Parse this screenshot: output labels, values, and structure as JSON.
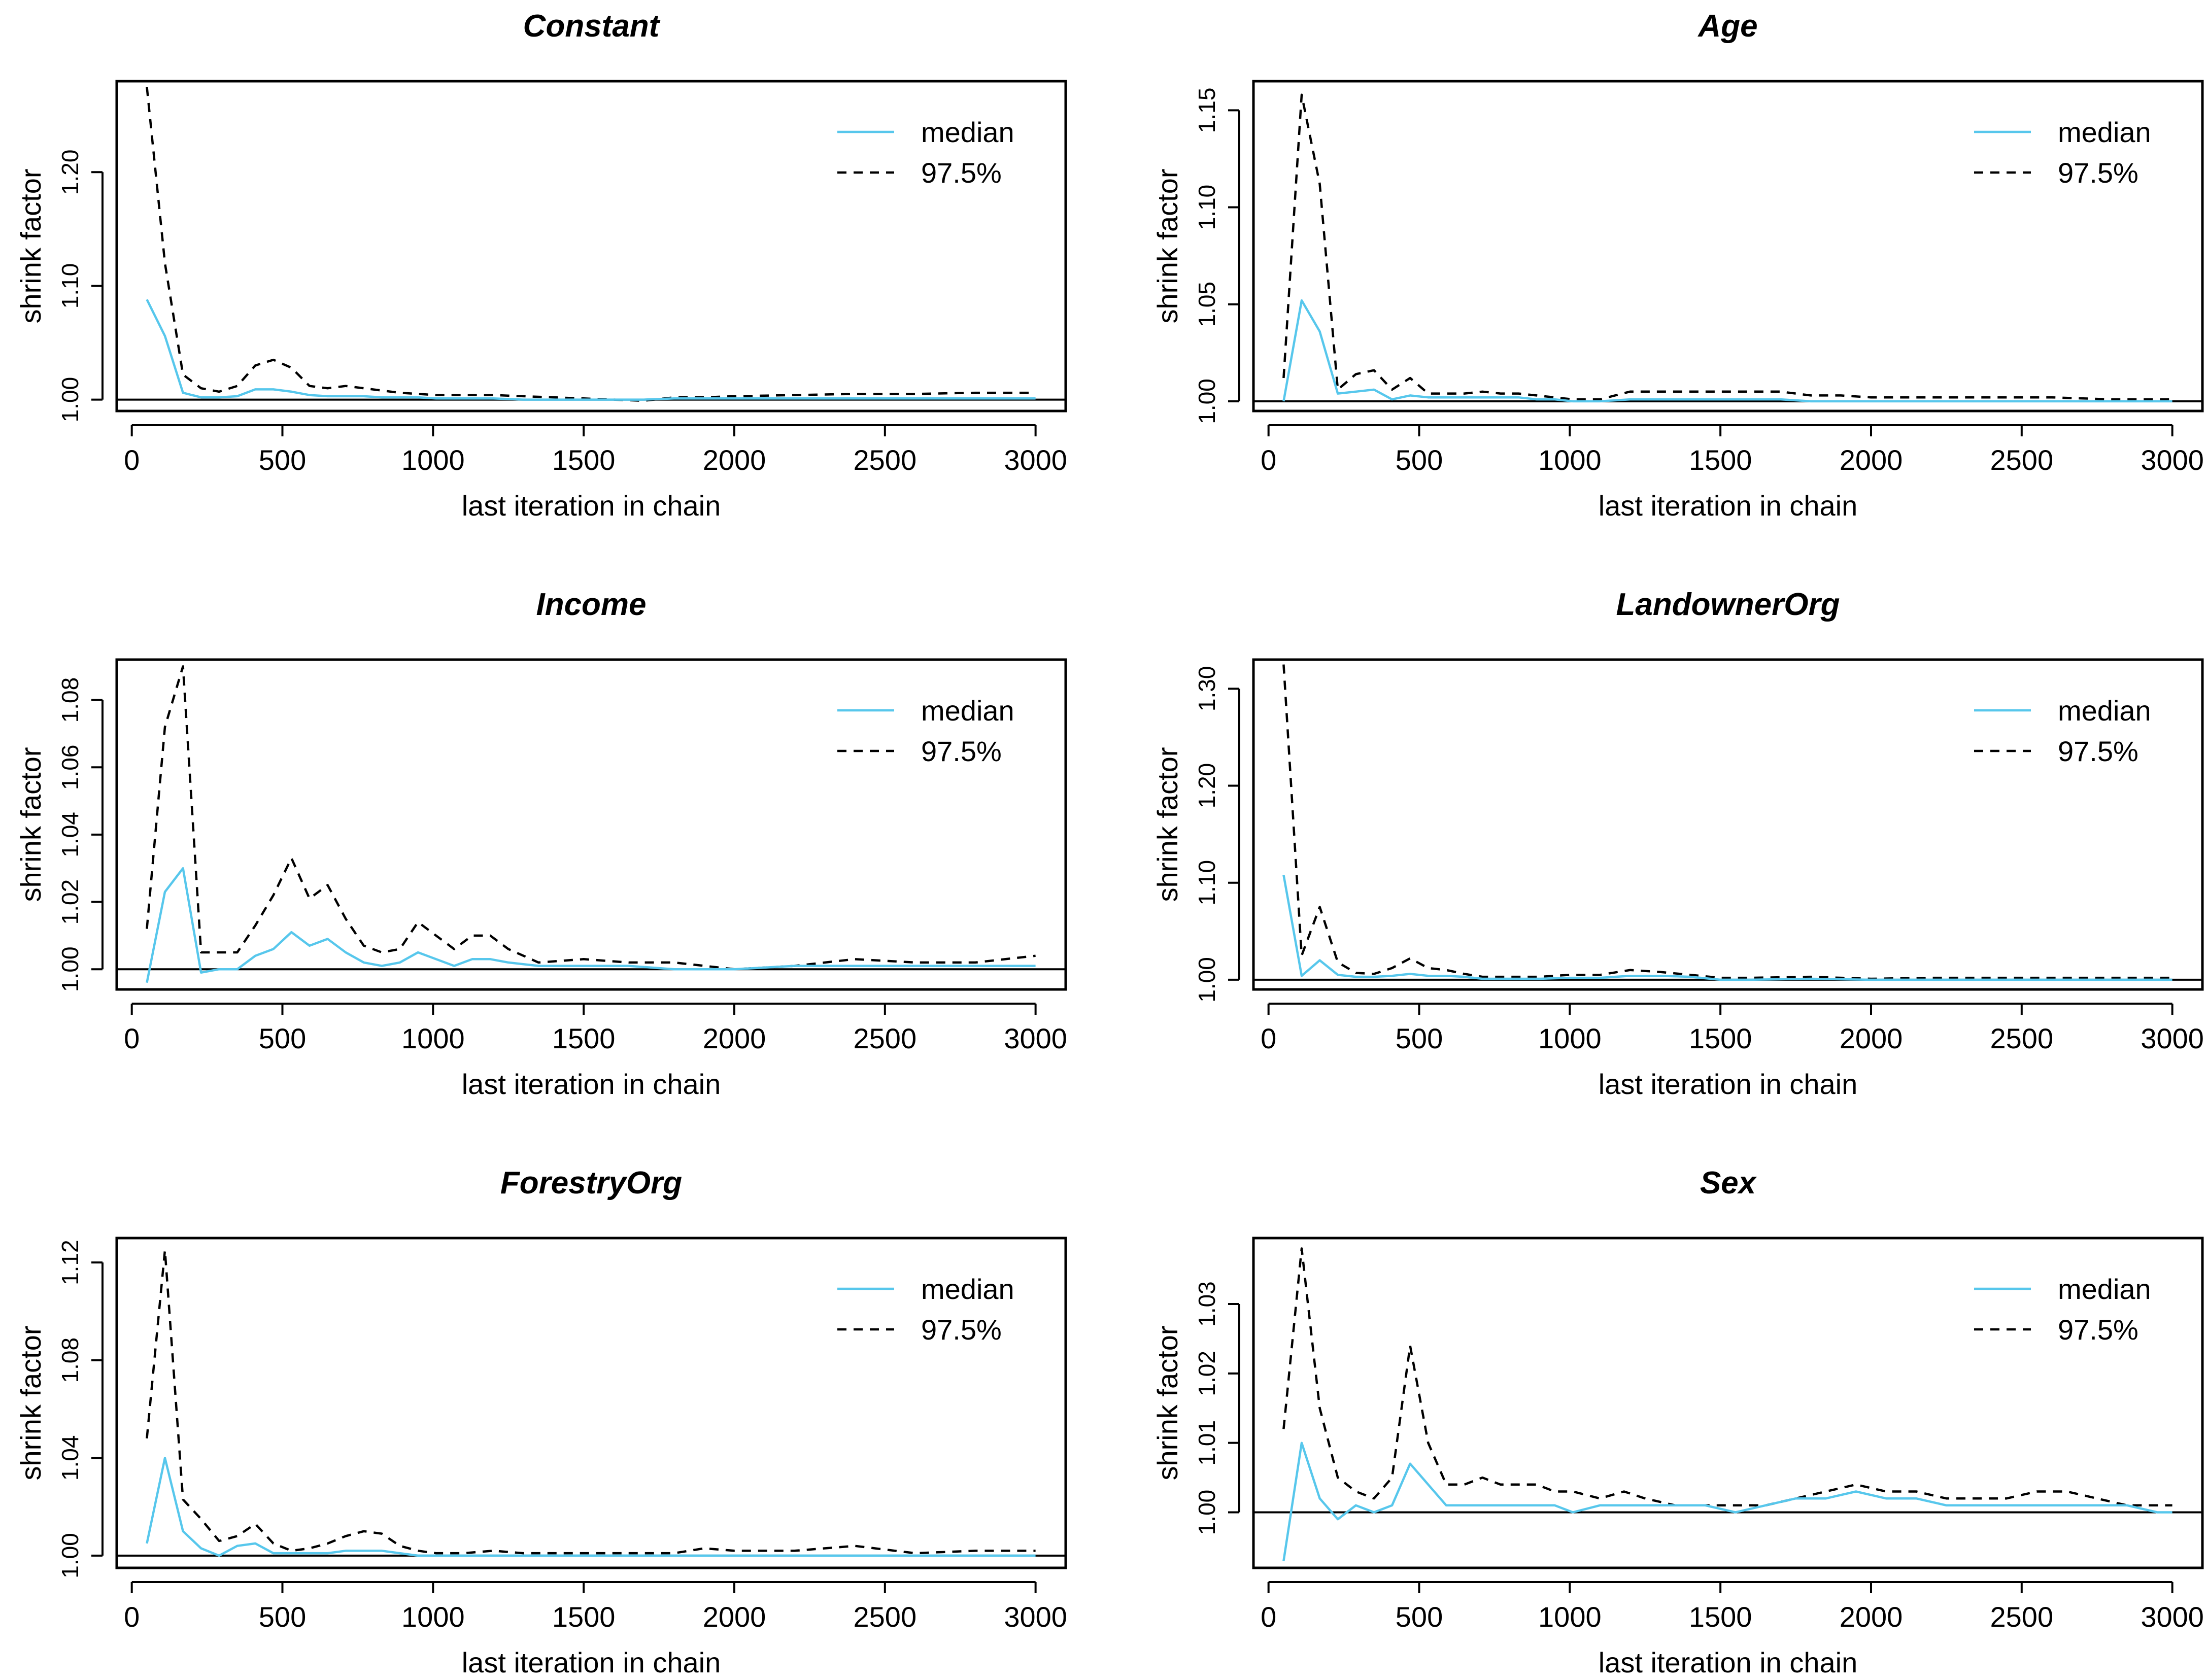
{
  "figure": {
    "median_color": "#57c7ec",
    "q975_color": "#000000",
    "refline_color": "#000000"
  },
  "chart_data": [
    {
      "type": "line",
      "title": "Constant",
      "xlabel": "last iteration in chain",
      "ylabel": "shrink factor",
      "xlim": [
        -50,
        3100
      ],
      "ylim": [
        0.99,
        1.28
      ],
      "xticks": [
        0,
        500,
        1000,
        1500,
        2000,
        2500,
        3000
      ],
      "yticks": [
        1.0,
        1.1,
        1.2
      ],
      "ytick_labels": [
        "1.00",
        "1.10",
        "1.20"
      ],
      "legend": {
        "position": "top-right",
        "entries": [
          "median",
          "97.5%"
        ]
      },
      "series": [
        {
          "name": "median",
          "x": [
            50,
            110,
            170,
            230,
            290,
            350,
            410,
            470,
            530,
            590,
            650,
            710,
            770,
            830,
            890,
            950,
            1010,
            1100,
            1200,
            1300,
            1400,
            1500,
            1600,
            1700,
            1800,
            1900,
            2000,
            2200,
            2400,
            2600,
            2800,
            3000
          ],
          "values": [
            1.088,
            1.056,
            1.006,
            1.002,
            1.002,
            1.003,
            1.009,
            1.009,
            1.007,
            1.004,
            1.003,
            1.003,
            1.003,
            1.002,
            1.002,
            1.002,
            1.001,
            1.001,
            1.001,
            1.0,
            1.0,
            1.0,
            1.0,
            1.0,
            1.001,
            1.001,
            1.001,
            1.001,
            1.001,
            1.001,
            1.001,
            1.001
          ]
        },
        {
          "name": "97.5%",
          "x": [
            50,
            110,
            170,
            230,
            290,
            350,
            410,
            470,
            530,
            590,
            650,
            710,
            770,
            830,
            890,
            950,
            1010,
            1100,
            1200,
            1300,
            1400,
            1500,
            1600,
            1700,
            1800,
            1900,
            2000,
            2200,
            2400,
            2600,
            2800,
            3000
          ],
          "values": [
            1.275,
            1.12,
            1.022,
            1.01,
            1.007,
            1.012,
            1.03,
            1.035,
            1.028,
            1.012,
            1.01,
            1.012,
            1.01,
            1.008,
            1.006,
            1.005,
            1.004,
            1.004,
            1.004,
            1.003,
            1.002,
            1.001,
            1.0,
            0.999,
            1.002,
            1.002,
            1.003,
            1.004,
            1.005,
            1.005,
            1.006,
            1.006
          ]
        }
      ]
    },
    {
      "type": "line",
      "title": "Age",
      "xlabel": "last iteration in chain",
      "ylabel": "shrink factor",
      "xlim": [
        -50,
        3100
      ],
      "ylim": [
        0.995,
        1.165
      ],
      "xticks": [
        0,
        500,
        1000,
        1500,
        2000,
        2500,
        3000
      ],
      "yticks": [
        1.0,
        1.05,
        1.1,
        1.15
      ],
      "ytick_labels": [
        "1.00",
        "1.05",
        "1.10",
        "1.15"
      ],
      "legend": {
        "position": "top-right",
        "entries": [
          "median",
          "97.5%"
        ]
      },
      "series": [
        {
          "name": "median",
          "x": [
            50,
            110,
            170,
            230,
            290,
            350,
            410,
            470,
            530,
            590,
            650,
            710,
            770,
            830,
            890,
            950,
            1010,
            1100,
            1200,
            1300,
            1400,
            1500,
            1600,
            1700,
            1800,
            1900,
            2000,
            2200,
            2400,
            2600,
            2800,
            3000
          ],
          "values": [
            1.0,
            1.052,
            1.036,
            1.004,
            1.005,
            1.006,
            1.001,
            1.003,
            1.002,
            1.002,
            1.002,
            1.002,
            1.002,
            1.002,
            1.001,
            1.001,
            1.0,
            1.0,
            1.001,
            1.001,
            1.001,
            1.001,
            1.001,
            1.001,
            1.0,
            1.0,
            1.0,
            1.0,
            1.0,
            1.0,
            1.0,
            1.0
          ]
        },
        {
          "name": "97.5%",
          "x": [
            50,
            110,
            170,
            230,
            290,
            350,
            410,
            470,
            530,
            590,
            650,
            710,
            770,
            830,
            890,
            950,
            1010,
            1100,
            1200,
            1300,
            1400,
            1500,
            1600,
            1700,
            1800,
            1900,
            2000,
            2200,
            2400,
            2600,
            2800,
            3000
          ],
          "values": [
            1.012,
            1.158,
            1.112,
            1.006,
            1.014,
            1.016,
            1.006,
            1.012,
            1.004,
            1.004,
            1.004,
            1.005,
            1.004,
            1.004,
            1.003,
            1.002,
            1.001,
            1.001,
            1.005,
            1.005,
            1.005,
            1.005,
            1.005,
            1.005,
            1.003,
            1.003,
            1.002,
            1.002,
            1.002,
            1.002,
            1.001,
            1.001
          ]
        }
      ]
    },
    {
      "type": "line",
      "title": "Income",
      "xlabel": "last iteration in chain",
      "ylabel": "shrink factor",
      "xlim": [
        -50,
        3100
      ],
      "ylim": [
        0.994,
        1.092
      ],
      "xticks": [
        0,
        500,
        1000,
        1500,
        2000,
        2500,
        3000
      ],
      "yticks": [
        1.0,
        1.02,
        1.04,
        1.06,
        1.08
      ],
      "ytick_labels": [
        "1.00",
        "1.02",
        "1.04",
        "1.06",
        "1.08"
      ],
      "legend": {
        "position": "top-right",
        "entries": [
          "median",
          "97.5%"
        ]
      },
      "series": [
        {
          "name": "median",
          "x": [
            50,
            110,
            170,
            230,
            290,
            350,
            410,
            470,
            530,
            590,
            650,
            710,
            770,
            830,
            890,
            950,
            1010,
            1070,
            1130,
            1190,
            1250,
            1350,
            1500,
            1650,
            1800,
            2000,
            2200,
            2400,
            2600,
            2800,
            3000
          ],
          "values": [
            0.996,
            1.023,
            1.03,
            0.999,
            1.0,
            1.0,
            1.004,
            1.006,
            1.011,
            1.007,
            1.009,
            1.005,
            1.002,
            1.001,
            1.002,
            1.005,
            1.003,
            1.001,
            1.003,
            1.003,
            1.002,
            1.001,
            1.001,
            1.001,
            1.0,
            1.0,
            1.001,
            1.001,
            1.001,
            1.001,
            1.001
          ]
        },
        {
          "name": "97.5%",
          "x": [
            50,
            110,
            170,
            230,
            290,
            350,
            410,
            470,
            530,
            590,
            650,
            710,
            770,
            830,
            890,
            950,
            1010,
            1070,
            1130,
            1190,
            1250,
            1350,
            1500,
            1650,
            1800,
            2000,
            2200,
            2400,
            2600,
            2800,
            3000
          ],
          "values": [
            1.012,
            1.072,
            1.09,
            1.005,
            1.005,
            1.005,
            1.013,
            1.022,
            1.033,
            1.021,
            1.025,
            1.015,
            1.007,
            1.005,
            1.006,
            1.014,
            1.01,
            1.006,
            1.01,
            1.01,
            1.006,
            1.002,
            1.003,
            1.002,
            1.002,
            1.0,
            1.001,
            1.003,
            1.002,
            1.002,
            1.004
          ]
        }
      ]
    },
    {
      "type": "line",
      "title": "LandownerOrg",
      "xlabel": "last iteration in chain",
      "ylabel": "shrink factor",
      "xlim": [
        -50,
        3100
      ],
      "ylim": [
        0.99,
        1.33
      ],
      "xticks": [
        0,
        500,
        1000,
        1500,
        2000,
        2500,
        3000
      ],
      "yticks": [
        1.0,
        1.1,
        1.2,
        1.3
      ],
      "ytick_labels": [
        "1.00",
        "1.10",
        "1.20",
        "1.30"
      ],
      "legend": {
        "position": "top-right",
        "entries": [
          "median",
          "97.5%"
        ]
      },
      "series": [
        {
          "name": "median",
          "x": [
            50,
            110,
            170,
            230,
            290,
            350,
            410,
            470,
            530,
            590,
            650,
            710,
            770,
            830,
            900,
            1000,
            1100,
            1200,
            1300,
            1400,
            1500,
            1600,
            1800,
            2000,
            2200,
            2400,
            2600,
            2800,
            3000
          ],
          "values": [
            1.108,
            1.004,
            1.02,
            1.005,
            1.003,
            1.003,
            1.004,
            1.006,
            1.004,
            1.004,
            1.003,
            1.001,
            1.001,
            1.001,
            1.001,
            1.002,
            1.002,
            1.004,
            1.004,
            1.003,
            1.0,
            1.0,
            1.001,
            1.0,
            1.0,
            1.0,
            1.0,
            1.0,
            1.0
          ]
        },
        {
          "name": "97.5%",
          "x": [
            50,
            110,
            170,
            230,
            290,
            350,
            410,
            470,
            530,
            590,
            650,
            710,
            770,
            830,
            900,
            1000,
            1100,
            1200,
            1300,
            1400,
            1500,
            1600,
            1800,
            2000,
            2200,
            2400,
            2600,
            2800,
            3000
          ],
          "values": [
            1.325,
            1.025,
            1.075,
            1.018,
            1.007,
            1.006,
            1.012,
            1.022,
            1.012,
            1.01,
            1.006,
            1.003,
            1.003,
            1.003,
            1.003,
            1.005,
            1.005,
            1.01,
            1.008,
            1.005,
            1.002,
            1.002,
            1.003,
            1.001,
            1.002,
            1.002,
            1.002,
            1.002,
            1.002
          ]
        }
      ]
    },
    {
      "type": "line",
      "title": "ForestryOrg",
      "xlabel": "last iteration in chain",
      "ylabel": "shrink factor",
      "xlim": [
        -50,
        3100
      ],
      "ylim": [
        0.995,
        1.13
      ],
      "xticks": [
        0,
        500,
        1000,
        1500,
        2000,
        2500,
        3000
      ],
      "yticks": [
        1.0,
        1.04,
        1.08,
        1.12
      ],
      "ytick_labels": [
        "1.00",
        "1.04",
        "1.08",
        "1.12"
      ],
      "legend": {
        "position": "top-right",
        "entries": [
          "median",
          "97.5%"
        ]
      },
      "series": [
        {
          "name": "median",
          "x": [
            50,
            110,
            170,
            230,
            290,
            350,
            410,
            470,
            530,
            590,
            650,
            710,
            770,
            830,
            890,
            950,
            1010,
            1100,
            1200,
            1300,
            1400,
            1500,
            1600,
            1700,
            1800,
            1900,
            2000,
            2200,
            2400,
            2600,
            2800,
            3000
          ],
          "values": [
            1.005,
            1.04,
            1.01,
            1.003,
            1.0,
            1.004,
            1.005,
            1.001,
            1.001,
            1.001,
            1.001,
            1.002,
            1.002,
            1.002,
            1.001,
            1.0,
            1.0,
            1.0,
            1.0,
            1.0,
            1.0,
            1.0,
            1.0,
            1.0,
            1.0,
            1.0,
            1.0,
            1.0,
            1.0,
            1.0,
            1.0,
            1.0
          ]
        },
        {
          "name": "97.5%",
          "x": [
            50,
            110,
            170,
            230,
            290,
            350,
            410,
            470,
            530,
            590,
            650,
            710,
            770,
            830,
            890,
            950,
            1010,
            1100,
            1200,
            1300,
            1400,
            1500,
            1600,
            1700,
            1800,
            1900,
            2000,
            2200,
            2400,
            2600,
            2800,
            3000
          ],
          "values": [
            1.048,
            1.125,
            1.023,
            1.015,
            1.006,
            1.008,
            1.013,
            1.005,
            1.002,
            1.003,
            1.005,
            1.008,
            1.01,
            1.009,
            1.004,
            1.002,
            1.001,
            1.001,
            1.002,
            1.001,
            1.001,
            1.001,
            1.001,
            1.001,
            1.001,
            1.003,
            1.002,
            1.002,
            1.004,
            1.001,
            1.002,
            1.002
          ]
        }
      ]
    },
    {
      "type": "line",
      "title": "Sex",
      "xlabel": "last iteration in chain",
      "ylabel": "shrink factor",
      "xlim": [
        -50,
        3100
      ],
      "ylim": [
        0.992,
        1.0395
      ],
      "xticks": [
        0,
        500,
        1000,
        1500,
        2000,
        2500,
        3000
      ],
      "yticks": [
        1.0,
        1.01,
        1.02,
        1.03
      ],
      "ytick_labels": [
        "1.00",
        "1.01",
        "1.02",
        "1.03"
      ],
      "legend": {
        "position": "top-right",
        "entries": [
          "median",
          "97.5%"
        ]
      },
      "series": [
        {
          "name": "median",
          "x": [
            50,
            110,
            170,
            230,
            290,
            350,
            410,
            470,
            530,
            590,
            650,
            710,
            770,
            830,
            890,
            950,
            1010,
            1100,
            1180,
            1250,
            1350,
            1450,
            1550,
            1650,
            1750,
            1850,
            1950,
            2050,
            2150,
            2250,
            2350,
            2450,
            2550,
            2650,
            2750,
            2850,
            2950,
            3000
          ],
          "values": [
            0.993,
            1.01,
            1.002,
            0.999,
            1.001,
            1.0,
            1.001,
            1.007,
            1.004,
            1.001,
            1.001,
            1.001,
            1.001,
            1.001,
            1.001,
            1.001,
            1.0,
            1.001,
            1.001,
            1.001,
            1.001,
            1.001,
            1.0,
            1.001,
            1.002,
            1.002,
            1.003,
            1.002,
            1.002,
            1.001,
            1.001,
            1.001,
            1.001,
            1.001,
            1.001,
            1.001,
            1.0,
            1.0
          ]
        },
        {
          "name": "97.5%",
          "x": [
            50,
            110,
            170,
            230,
            290,
            350,
            410,
            470,
            530,
            590,
            650,
            710,
            770,
            830,
            890,
            950,
            1010,
            1100,
            1180,
            1250,
            1350,
            1450,
            1550,
            1650,
            1750,
            1850,
            1950,
            2050,
            2150,
            2250,
            2350,
            2450,
            2550,
            2650,
            2750,
            2850,
            2950,
            3000
          ],
          "values": [
            1.012,
            1.038,
            1.015,
            1.005,
            1.003,
            1.002,
            1.005,
            1.024,
            1.01,
            1.004,
            1.004,
            1.005,
            1.004,
            1.004,
            1.004,
            1.003,
            1.003,
            1.002,
            1.003,
            1.002,
            1.001,
            1.001,
            1.001,
            1.001,
            1.002,
            1.003,
            1.004,
            1.003,
            1.003,
            1.002,
            1.002,
            1.002,
            1.003,
            1.003,
            1.002,
            1.001,
            1.001,
            1.001
          ]
        }
      ]
    }
  ]
}
